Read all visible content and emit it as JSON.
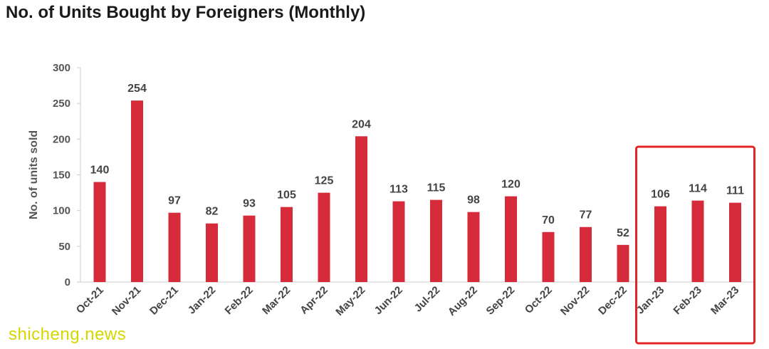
{
  "title": "No. of Units Bought by Foreigners (Monthly)",
  "watermark": "shicheng.news",
  "colors": {
    "bar": "#d62b3a",
    "highlight_box": "#e02626",
    "axis": "#cccccc"
  },
  "chart_data": {
    "type": "bar",
    "title": "No. of Units Bought by Foreigners (Monthly)",
    "xlabel": "",
    "ylabel": "No. of units sold",
    "ylim": [
      0,
      300
    ],
    "yticks": [
      0,
      50,
      100,
      150,
      200,
      250,
      300
    ],
    "grid": false,
    "categories": [
      "Oct-21",
      "Nov-21",
      "Dec-21",
      "Jan-22",
      "Feb-22",
      "Mar-22",
      "Apr-22",
      "May-22",
      "Jun-22",
      "Jul-22",
      "Aug-22",
      "Sep-22",
      "Oct-22",
      "Nov-22",
      "Dec-22",
      "Jan-23",
      "Feb-23",
      "Mar-23"
    ],
    "values": [
      140,
      254,
      97,
      82,
      93,
      105,
      125,
      204,
      113,
      115,
      98,
      120,
      70,
      77,
      52,
      106,
      114,
      111
    ],
    "highlighted_categories": [
      "Jan-23",
      "Feb-23",
      "Mar-23"
    ]
  }
}
